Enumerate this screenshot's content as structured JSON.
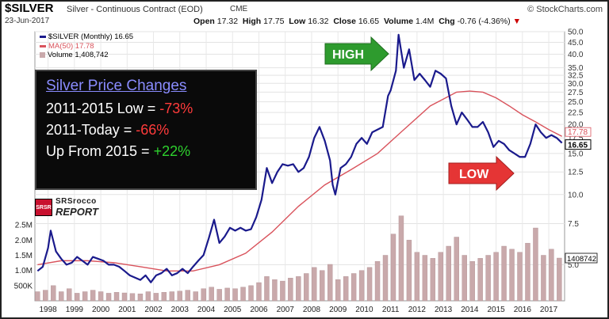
{
  "header": {
    "title": "$SILVER",
    "subtitle": "Silver - Continuous Contract (EOD)",
    "exchange": "CME",
    "brand": "© StockCharts.com",
    "date": "23-Jun-2017",
    "open_label": "Open",
    "open": "17.32",
    "high_label": "High",
    "high": "17.75",
    "low_label": "Low",
    "low": "16.32",
    "close_label": "Close",
    "close": "16.65",
    "volume_label": "Volume",
    "volume": "1.4M",
    "chg_label": "Chg",
    "chg": "-0.76 (-4.36%)",
    "chg_arrow": "▼"
  },
  "legend": {
    "price": "$SILVER (Monthly) 16.65",
    "ma": "MA(50) 17.78",
    "volume": "Volume 1,408,742"
  },
  "infobox": {
    "title": "Silver Price Changes",
    "line1_label": "2011-2015 Low = ",
    "line1_value": "-73%",
    "line2_label": "2011-Today  = ",
    "line2_value": "-66%",
    "line3_label": "Up From 2015 = ",
    "line3_value": "+22%"
  },
  "logo": {
    "badge": "SRSR",
    "line1": "SRSrocco",
    "line2": "REPORT"
  },
  "annotations": {
    "high": "HIGH",
    "low": "LOW"
  },
  "colors": {
    "price": "#1a1a8c",
    "ma": "#d9535c",
    "volume_bar": "#c9a9ab",
    "high_arrow": "#2e9b2e",
    "low_arrow": "#e53535"
  },
  "chart_data": {
    "type": "line",
    "title": "$SILVER Silver - Continuous Contract (EOD)",
    "xlabel": "",
    "ylabel": "",
    "y_scale": "log",
    "ylim": [
      3.5,
      50
    ],
    "xlim": [
      1997.5,
      2017.6
    ],
    "price_ticks": [
      "50.0",
      "45.0",
      "40.0",
      "35.0",
      "32.5",
      "30.0",
      "27.5",
      "25.0",
      "22.5",
      "20.0",
      "17.5",
      "15.0",
      "12.5",
      "10.0",
      "7.5",
      "5.0"
    ],
    "price_tick_values": [
      50,
      45,
      40,
      35,
      32.5,
      30,
      27.5,
      25,
      22.5,
      20,
      17.5,
      15,
      12.5,
      10,
      7.5,
      5
    ],
    "x_ticks": [
      "1998",
      "1999",
      "2000",
      "2001",
      "2002",
      "2003",
      "2004",
      "2005",
      "2006",
      "2007",
      "2008",
      "2009",
      "2010",
      "2011",
      "2012",
      "2013",
      "2014",
      "2015",
      "2016",
      "2017"
    ],
    "x_tick_values": [
      1998,
      1999,
      2000,
      2001,
      2002,
      2003,
      2004,
      2005,
      2006,
      2007,
      2008,
      2009,
      2010,
      2011,
      2012,
      2013,
      2014,
      2015,
      2016,
      2017
    ],
    "volume_ticks": [
      "2.5M",
      "2.0M",
      "1.5M",
      "1.0M",
      "500K"
    ],
    "volume_tick_values": [
      2500000,
      2000000,
      1500000,
      1000000,
      500000
    ],
    "last_price_label": "16.65",
    "ma_label": "17.78",
    "volume_last_label": "1408742",
    "series": [
      {
        "name": "$SILVER (Monthly)",
        "x": [
          1997.6,
          1997.8,
          1998.0,
          1998.1,
          1998.3,
          1998.5,
          1998.7,
          1998.9,
          1999.1,
          1999.3,
          1999.5,
          1999.7,
          1999.9,
          2000.1,
          2000.3,
          2000.5,
          2000.7,
          2000.9,
          2001.1,
          2001.3,
          2001.5,
          2001.7,
          2001.9,
          2002.1,
          2002.3,
          2002.5,
          2002.7,
          2002.9,
          2003.1,
          2003.3,
          2003.5,
          2003.7,
          2003.9,
          2004.1,
          2004.3,
          2004.5,
          2004.7,
          2004.9,
          2005.1,
          2005.3,
          2005.5,
          2005.7,
          2005.9,
          2006.1,
          2006.3,
          2006.5,
          2006.7,
          2006.9,
          2007.1,
          2007.3,
          2007.5,
          2007.7,
          2007.9,
          2008.1,
          2008.3,
          2008.5,
          2008.7,
          2008.8,
          2008.9,
          2009.1,
          2009.3,
          2009.5,
          2009.7,
          2009.9,
          2010.1,
          2010.3,
          2010.5,
          2010.7,
          2010.9,
          2011.0,
          2011.2,
          2011.3,
          2011.5,
          2011.7,
          2011.9,
          2012.1,
          2012.3,
          2012.5,
          2012.7,
          2012.9,
          2013.1,
          2013.3,
          2013.5,
          2013.7,
          2013.9,
          2014.1,
          2014.3,
          2014.5,
          2014.7,
          2014.9,
          2015.1,
          2015.3,
          2015.5,
          2015.7,
          2015.9,
          2016.1,
          2016.3,
          2016.5,
          2016.7,
          2016.9,
          2017.1,
          2017.3,
          2017.5
        ],
        "values": [
          4.7,
          4.9,
          5.9,
          7.0,
          5.7,
          5.3,
          5.0,
          5.1,
          5.4,
          5.2,
          5.0,
          5.4,
          5.3,
          5.2,
          5.0,
          5.0,
          4.9,
          4.7,
          4.5,
          4.4,
          4.3,
          4.5,
          4.2,
          4.5,
          4.6,
          4.8,
          4.5,
          4.6,
          4.8,
          4.6,
          4.9,
          5.2,
          5.5,
          6.5,
          7.8,
          6.2,
          6.6,
          7.2,
          7.0,
          7.2,
          7.0,
          7.1,
          8.0,
          9.5,
          13.0,
          11.2,
          12.5,
          13.5,
          13.3,
          13.5,
          12.5,
          13.0,
          14.5,
          17.5,
          19.5,
          17.0,
          14.0,
          11.0,
          10.0,
          13.0,
          13.5,
          14.5,
          16.5,
          17.5,
          16.5,
          18.5,
          19.0,
          19.5,
          26.5,
          28.0,
          34.0,
          48.5,
          35.0,
          42.0,
          31.0,
          33.0,
          31.0,
          29.0,
          34.0,
          33.0,
          31.5,
          24.0,
          20.0,
          22.5,
          21.0,
          19.5,
          19.5,
          20.5,
          18.5,
          16.0,
          17.0,
          16.5,
          15.5,
          15.0,
          14.5,
          14.5,
          16.5,
          20.0,
          18.5,
          17.5,
          18.0,
          17.5,
          16.65
        ]
      },
      {
        "name": "MA(50)",
        "x": [
          1997.6,
          1998.5,
          1999.5,
          2000.5,
          2001.5,
          2002.5,
          2003.5,
          2004.5,
          2005.5,
          2006.5,
          2007.5,
          2008.5,
          2009.5,
          2010.5,
          2011.5,
          2012.5,
          2013.5,
          2014.0,
          2014.5,
          2015.0,
          2015.5,
          2016.0,
          2016.5,
          2017.0,
          2017.5
        ],
        "values": [
          5.0,
          5.2,
          5.2,
          5.1,
          4.9,
          4.7,
          4.7,
          5.0,
          5.6,
          6.9,
          8.9,
          11.0,
          12.8,
          15.0,
          19.0,
          24.0,
          27.5,
          27.8,
          27.5,
          26.0,
          24.0,
          22.0,
          20.5,
          19.0,
          17.78
        ]
      }
    ],
    "volume": {
      "name": "Volume",
      "x": [
        1997.6,
        1997.9,
        1998.2,
        1998.5,
        1998.8,
        1999.1,
        1999.4,
        1999.7,
        2000.0,
        2000.3,
        2000.6,
        2000.9,
        2001.2,
        2001.5,
        2001.8,
        2002.1,
        2002.4,
        2002.7,
        2003.0,
        2003.3,
        2003.6,
        2003.9,
        2004.2,
        2004.5,
        2004.8,
        2005.1,
        2005.4,
        2005.7,
        2006.0,
        2006.3,
        2006.6,
        2006.9,
        2007.2,
        2007.5,
        2007.8,
        2008.1,
        2008.4,
        2008.7,
        2009.0,
        2009.3,
        2009.6,
        2009.9,
        2010.2,
        2010.5,
        2010.8,
        2011.1,
        2011.4,
        2011.7,
        2012.0,
        2012.3,
        2012.6,
        2012.9,
        2013.2,
        2013.5,
        2013.8,
        2014.1,
        2014.4,
        2014.7,
        2015.0,
        2015.3,
        2015.6,
        2015.9,
        2016.2,
        2016.5,
        2016.8,
        2017.1,
        2017.4
      ],
      "values": [
        300000,
        350000,
        500000,
        300000,
        400000,
        250000,
        300000,
        350000,
        300000,
        250000,
        280000,
        260000,
        240000,
        230000,
        300000,
        250000,
        280000,
        300000,
        320000,
        350000,
        300000,
        400000,
        450000,
        380000,
        420000,
        400000,
        450000,
        500000,
        600000,
        800000,
        700000,
        650000,
        750000,
        800000,
        900000,
        1100000,
        1000000,
        1200000,
        700000,
        800000,
        900000,
        1000000,
        1100000,
        1300000,
        1500000,
        2200000,
        2800000,
        2000000,
        1600000,
        1500000,
        1400000,
        1600000,
        1800000,
        2100000,
        1500000,
        1300000,
        1400000,
        1500000,
        1600000,
        1800000,
        1700000,
        1600000,
        1900000,
        2400000,
        1500000,
        1700000,
        1408742
      ]
    }
  }
}
